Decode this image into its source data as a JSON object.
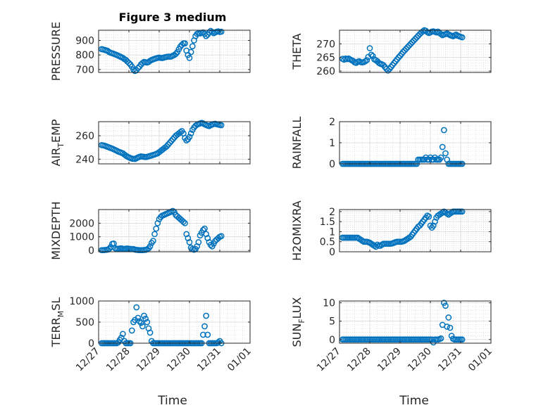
{
  "figure": {
    "title": "Figure 3 medium",
    "xlabel": "Time",
    "marker_color": "#0072BD",
    "x_ticks": [
      "12/27",
      "12/28",
      "12/29",
      "12/30",
      "12/31",
      "01/01"
    ]
  },
  "chart_data": [
    {
      "type": "scatter",
      "id": "pressure",
      "title": "Figure 3 medium",
      "ylabel": "PRESSURE",
      "ylim": [
        680,
        970
      ],
      "yticks": [
        700,
        800,
        900
      ],
      "xlabel": "",
      "x": [
        0.1,
        0.15,
        0.2,
        0.25,
        0.3,
        0.35,
        0.4,
        0.45,
        0.5,
        0.55,
        0.6,
        0.65,
        0.7,
        0.75,
        0.8,
        0.85,
        0.9,
        0.95,
        1.0,
        1.05,
        1.1,
        1.15,
        1.2,
        1.25,
        1.3,
        1.35,
        1.4,
        1.45,
        1.5,
        1.55,
        1.6,
        1.65,
        1.7,
        1.75,
        1.8,
        1.85,
        1.9,
        1.95,
        2.0,
        2.05,
        2.1,
        2.15,
        2.2,
        2.25,
        2.3,
        2.35,
        2.4,
        2.45,
        2.5,
        2.55,
        2.6,
        2.65,
        2.7,
        2.75,
        2.8,
        2.85,
        2.9,
        2.95,
        3.0,
        3.05,
        3.1,
        3.15,
        3.2,
        3.25,
        3.3,
        3.35,
        3.4,
        3.45,
        3.5,
        3.55,
        3.6,
        3.65,
        3.7,
        3.75,
        3.8,
        3.85,
        3.9,
        3.95,
        4.0,
        4.05
      ],
      "values": [
        840,
        838,
        835,
        832,
        828,
        820,
        815,
        812,
        808,
        804,
        800,
        795,
        790,
        785,
        780,
        772,
        766,
        755,
        745,
        735,
        720,
        700,
        690,
        695,
        710,
        720,
        735,
        745,
        752,
        750,
        748,
        752,
        760,
        766,
        770,
        774,
        777,
        780,
        782,
        780,
        779,
        782,
        785,
        787,
        789,
        788,
        790,
        795,
        800,
        808,
        820,
        840,
        858,
        870,
        880,
        880,
        830,
        800,
        780,
        820,
        860,
        900,
        930,
        945,
        950,
        948,
        952,
        955,
        945,
        930,
        940,
        955,
        965,
        958,
        950,
        955,
        960,
        962,
        958,
        960
      ]
    },
    {
      "type": "scatter",
      "id": "theta",
      "ylabel": "THETA",
      "ylim": [
        259.5,
        275
      ],
      "yticks": [
        260,
        265,
        270
      ],
      "xlabel": "",
      "x": [
        0.1,
        0.15,
        0.2,
        0.25,
        0.3,
        0.35,
        0.4,
        0.45,
        0.5,
        0.55,
        0.6,
        0.65,
        0.7,
        0.75,
        0.8,
        0.85,
        0.9,
        0.95,
        1.0,
        1.05,
        1.1,
        1.15,
        1.2,
        1.25,
        1.3,
        1.35,
        1.4,
        1.45,
        1.5,
        1.55,
        1.6,
        1.65,
        1.7,
        1.75,
        1.8,
        1.85,
        1.9,
        1.95,
        2.0,
        2.05,
        2.1,
        2.15,
        2.2,
        2.25,
        2.3,
        2.35,
        2.4,
        2.45,
        2.5,
        2.55,
        2.6,
        2.65,
        2.7,
        2.75,
        2.8,
        2.85,
        2.9,
        2.95,
        3.0,
        3.05,
        3.1,
        3.15,
        3.2,
        3.25,
        3.3,
        3.35,
        3.4,
        3.45,
        3.5,
        3.55,
        3.6,
        3.65,
        3.7,
        3.75,
        3.8,
        3.85,
        3.9,
        3.95,
        4.0,
        4.05
      ],
      "values": [
        264.5,
        264.2,
        264.6,
        264.4,
        264.6,
        264.3,
        264.0,
        263.7,
        263.2,
        263.0,
        263.4,
        263.6,
        263.3,
        263.2,
        263.3,
        263.6,
        264.0,
        265.2,
        268.4,
        266.0,
        265.5,
        264.3,
        264.0,
        263.6,
        263.0,
        262.7,
        262.5,
        262.2,
        261.5,
        260.8,
        260.2,
        260.8,
        261.5,
        262.2,
        262.9,
        263.6,
        264.3,
        265.0,
        265.6,
        266.3,
        267.0,
        267.6,
        268.2,
        268.8,
        269.4,
        270.0,
        270.6,
        271.2,
        271.8,
        272.4,
        273.0,
        273.6,
        274.1,
        274.6,
        275.0,
        274.8,
        274.3,
        274.0,
        274.2,
        274.5,
        274.6,
        274.4,
        274.2,
        274.5,
        274.0,
        273.6,
        273.2,
        273.4,
        273.6,
        273.8,
        273.5,
        273.2,
        273.0,
        272.8,
        273.1,
        273.4,
        273.0,
        272.8,
        272.6,
        272.4
      ]
    },
    {
      "type": "scatter",
      "id": "air_temp",
      "ylabel": "AIR_TEMP",
      "ylim": [
        236,
        272
      ],
      "yticks": [
        240,
        260
      ],
      "xlabel": "",
      "x": [
        0.1,
        0.15,
        0.2,
        0.25,
        0.3,
        0.35,
        0.4,
        0.45,
        0.5,
        0.55,
        0.6,
        0.65,
        0.7,
        0.75,
        0.8,
        0.85,
        0.9,
        0.95,
        1.0,
        1.05,
        1.1,
        1.15,
        1.2,
        1.25,
        1.3,
        1.35,
        1.4,
        1.45,
        1.5,
        1.55,
        1.6,
        1.65,
        1.7,
        1.75,
        1.8,
        1.85,
        1.9,
        1.95,
        2.0,
        2.05,
        2.1,
        2.15,
        2.2,
        2.25,
        2.3,
        2.35,
        2.4,
        2.45,
        2.5,
        2.55,
        2.6,
        2.65,
        2.7,
        2.75,
        2.8,
        2.85,
        2.9,
        2.95,
        3.0,
        3.05,
        3.1,
        3.15,
        3.2,
        3.25,
        3.3,
        3.35,
        3.4,
        3.45,
        3.5,
        3.55,
        3.6,
        3.65,
        3.7,
        3.75,
        3.8,
        3.85,
        3.9,
        3.95,
        4.0,
        4.05
      ],
      "values": [
        252,
        251.8,
        251.5,
        251,
        250.5,
        250,
        249.5,
        249,
        248.4,
        247.8,
        247.2,
        246.5,
        246,
        245.5,
        245,
        244,
        243,
        242.2,
        241.5,
        241,
        240.5,
        240.3,
        240.2,
        240.8,
        241.5,
        242,
        242.4,
        242.2,
        242,
        241.8,
        242,
        242.4,
        242.8,
        243.2,
        243.6,
        244,
        244.5,
        245,
        246,
        247,
        248,
        249,
        250,
        251,
        252.5,
        254,
        255.5,
        257,
        258.5,
        260,
        261,
        262,
        263,
        264,
        262,
        258,
        256,
        257,
        259,
        262,
        265,
        267,
        268.5,
        269.5,
        270,
        270.5,
        271,
        270.5,
        269.8,
        269.2,
        268.6,
        268.2,
        269,
        269.6,
        270,
        270.2,
        269.8,
        269.5,
        269.2,
        269.0
      ]
    },
    {
      "type": "scatter",
      "id": "rainfall",
      "ylabel": "RAINFALL",
      "ylim": [
        0,
        2
      ],
      "yticks": [
        0,
        1,
        2
      ],
      "xlabel": "",
      "x": [
        0.1,
        0.15,
        0.2,
        0.25,
        0.3,
        0.35,
        0.4,
        0.45,
        0.5,
        0.55,
        0.6,
        0.65,
        0.7,
        0.75,
        0.8,
        0.85,
        0.9,
        0.95,
        1.0,
        1.05,
        1.1,
        1.15,
        1.2,
        1.25,
        1.3,
        1.35,
        1.4,
        1.45,
        1.5,
        1.55,
        1.6,
        1.65,
        1.7,
        1.75,
        1.8,
        1.85,
        1.9,
        1.95,
        2.0,
        2.05,
        2.1,
        2.15,
        2.2,
        2.25,
        2.3,
        2.35,
        2.4,
        2.45,
        2.5,
        2.55,
        2.6,
        2.65,
        2.7,
        2.75,
        2.8,
        2.85,
        2.9,
        2.95,
        3.0,
        3.05,
        3.1,
        3.15,
        3.2,
        3.25,
        3.3,
        3.35,
        3.4,
        3.45,
        3.5,
        3.55,
        3.6,
        3.65,
        3.7,
        3.75,
        3.8,
        3.85,
        3.9,
        3.95,
        4.0,
        4.05
      ],
      "values": [
        0,
        0,
        0,
        0,
        0,
        0,
        0,
        0,
        0,
        0,
        0,
        0,
        0,
        0,
        0,
        0,
        0,
        0,
        0,
        0,
        0,
        0,
        0,
        0,
        0,
        0,
        0,
        0,
        0,
        0,
        0,
        0,
        0,
        0,
        0,
        0,
        0,
        0,
        0,
        0,
        0,
        0,
        0,
        0,
        0,
        0,
        0,
        0,
        0,
        0,
        0.2,
        0.2,
        0.2,
        0.2,
        0.2,
        0.3,
        0.2,
        0.2,
        0.3,
        0.2,
        0.2,
        0.3,
        0.2,
        0.2,
        0.2,
        0.3,
        0.8,
        1.6,
        0.5,
        0.2,
        0,
        0,
        0,
        0,
        0,
        0,
        0,
        0,
        0,
        0
      ]
    },
    {
      "type": "scatter",
      "id": "mixdepth",
      "ylabel": "MIXDEPTH",
      "ylim": [
        -100,
        3000
      ],
      "yticks": [
        0,
        1000,
        2000
      ],
      "xlabel": "",
      "x": [
        0.1,
        0.15,
        0.2,
        0.25,
        0.3,
        0.35,
        0.4,
        0.45,
        0.5,
        0.55,
        0.6,
        0.65,
        0.7,
        0.75,
        0.8,
        0.85,
        0.9,
        0.95,
        1.0,
        1.05,
        1.1,
        1.15,
        1.2,
        1.25,
        1.3,
        1.35,
        1.4,
        1.45,
        1.5,
        1.55,
        1.6,
        1.65,
        1.7,
        1.75,
        1.8,
        1.85,
        1.9,
        1.95,
        2.0,
        2.05,
        2.1,
        2.15,
        2.2,
        2.25,
        2.3,
        2.35,
        2.4,
        2.45,
        2.5,
        2.55,
        2.6,
        2.65,
        2.7,
        2.75,
        2.8,
        2.85,
        2.9,
        2.95,
        3.0,
        3.05,
        3.1,
        3.15,
        3.2,
        3.25,
        3.3,
        3.35,
        3.4,
        3.45,
        3.5,
        3.55,
        3.6,
        3.65,
        3.7,
        3.75,
        3.8,
        3.85,
        3.9,
        3.95,
        4.0,
        4.05
      ],
      "values": [
        20,
        20,
        30,
        40,
        60,
        120,
        250,
        480,
        500,
        150,
        100,
        120,
        140,
        150,
        120,
        100,
        130,
        140,
        120,
        110,
        100,
        100,
        60,
        40,
        30,
        20,
        20,
        20,
        30,
        40,
        80,
        150,
        300,
        550,
        700,
        1200,
        1600,
        2000,
        2300,
        2450,
        2550,
        2600,
        2650,
        2700,
        2750,
        2800,
        2850,
        2900,
        2800,
        2600,
        2500,
        2400,
        2300,
        2200,
        2100,
        2000,
        1200,
        900,
        600,
        200,
        100,
        50,
        100,
        300,
        600,
        1100,
        1300,
        1500,
        1600,
        1200,
        900,
        600,
        400,
        300,
        500,
        700,
        800,
        900,
        1000,
        1050
      ]
    },
    {
      "type": "scatter",
      "id": "h2omixra",
      "ylabel": "H2OMIXRA",
      "ylim": [
        0,
        2.1
      ],
      "yticks": [
        0,
        0.5,
        1,
        1.5,
        2
      ],
      "xlabel": "",
      "x": [
        0.1,
        0.15,
        0.2,
        0.25,
        0.3,
        0.35,
        0.4,
        0.45,
        0.5,
        0.55,
        0.6,
        0.65,
        0.7,
        0.75,
        0.8,
        0.85,
        0.9,
        0.95,
        1.0,
        1.05,
        1.1,
        1.15,
        1.2,
        1.25,
        1.3,
        1.35,
        1.4,
        1.45,
        1.5,
        1.55,
        1.6,
        1.65,
        1.7,
        1.75,
        1.8,
        1.85,
        1.9,
        1.95,
        2.0,
        2.05,
        2.1,
        2.15,
        2.2,
        2.25,
        2.3,
        2.35,
        2.4,
        2.45,
        2.5,
        2.55,
        2.6,
        2.65,
        2.7,
        2.75,
        2.8,
        2.85,
        2.9,
        2.95,
        3.0,
        3.05,
        3.1,
        3.15,
        3.2,
        3.25,
        3.3,
        3.35,
        3.4,
        3.45,
        3.5,
        3.55,
        3.6,
        3.65,
        3.7,
        3.75,
        3.8,
        3.85,
        3.9,
        3.95,
        4.0,
        4.05
      ],
      "values": [
        0.7,
        0.7,
        0.7,
        0.7,
        0.7,
        0.7,
        0.7,
        0.7,
        0.7,
        0.7,
        0.7,
        0.65,
        0.6,
        0.55,
        0.5,
        0.5,
        0.5,
        0.48,
        0.45,
        0.4,
        0.35,
        0.3,
        0.25,
        0.35,
        0.3,
        0.3,
        0.35,
        0.4,
        0.4,
        0.4,
        0.4,
        0.4,
        0.4,
        0.42,
        0.45,
        0.48,
        0.5,
        0.5,
        0.5,
        0.5,
        0.52,
        0.55,
        0.6,
        0.65,
        0.7,
        0.75,
        0.85,
        0.95,
        1.05,
        1.15,
        1.25,
        1.3,
        1.4,
        1.5,
        1.6,
        1.7,
        1.8,
        1.75,
        1.3,
        1.2,
        1.3,
        1.5,
        1.7,
        1.8,
        1.85,
        1.9,
        1.95,
        2.0,
        1.95,
        1.9,
        1.85,
        1.9,
        1.95,
        2.0,
        2.0,
        2.0,
        2.0,
        2.0,
        2.0,
        2.0
      ]
    },
    {
      "type": "scatter",
      "id": "terr_msl",
      "ylabel": "TERR_MSL",
      "ylim": [
        0,
        1000
      ],
      "yticks": [
        0,
        500,
        1000
      ],
      "xlabel": "Time",
      "xticks": [
        "12/27",
        "12/28",
        "12/29",
        "12/30",
        "12/31",
        "01/01"
      ],
      "x": [
        0.1,
        0.15,
        0.2,
        0.25,
        0.3,
        0.35,
        0.4,
        0.45,
        0.5,
        0.55,
        0.6,
        0.65,
        0.7,
        0.75,
        0.8,
        0.85,
        0.9,
        0.95,
        1.0,
        1.05,
        1.1,
        1.15,
        1.2,
        1.25,
        1.3,
        1.35,
        1.4,
        1.45,
        1.5,
        1.55,
        1.6,
        1.65,
        1.7,
        1.75,
        1.8,
        1.85,
        1.9,
        1.95,
        2.0,
        2.05,
        2.1,
        2.15,
        2.2,
        2.25,
        2.3,
        2.35,
        2.4,
        2.45,
        2.5,
        2.55,
        2.6,
        2.65,
        2.7,
        2.75,
        2.8,
        2.85,
        2.9,
        2.95,
        3.0,
        3.05,
        3.1,
        3.15,
        3.2,
        3.25,
        3.3,
        3.35,
        3.4,
        3.45,
        3.5,
        3.55,
        3.6,
        3.65,
        3.7,
        3.75,
        3.8,
        3.85,
        3.9,
        3.95,
        4.0,
        4.05
      ],
      "values": [
        0,
        0,
        0,
        0,
        0,
        0,
        0,
        0,
        0,
        0,
        0,
        20,
        80,
        130,
        220,
        50,
        0,
        0,
        0,
        0,
        300,
        500,
        550,
        850,
        600,
        520,
        480,
        400,
        650,
        580,
        500,
        350,
        250,
        50,
        0,
        0,
        0,
        0,
        0,
        0,
        0,
        0,
        0,
        0,
        0,
        0,
        0,
        0,
        0,
        0,
        0,
        0,
        0,
        0,
        0,
        0,
        0,
        0,
        0,
        0,
        0,
        0,
        0,
        0,
        0,
        0,
        0,
        200,
        400,
        650,
        200,
        0,
        0,
        0,
        0,
        0,
        0,
        20,
        50,
        0
      ]
    },
    {
      "type": "scatter",
      "id": "sun_flux",
      "ylabel": "SUN_FLUX",
      "ylim": [
        -1,
        10.5
      ],
      "yticks": [
        0,
        5,
        10
      ],
      "xlabel": "Time",
      "xticks": [
        "12/27",
        "12/28",
        "12/29",
        "12/30",
        "12/31",
        "01/01"
      ],
      "x": [
        0.1,
        0.15,
        0.2,
        0.25,
        0.3,
        0.35,
        0.4,
        0.45,
        0.5,
        0.55,
        0.6,
        0.65,
        0.7,
        0.75,
        0.8,
        0.85,
        0.9,
        0.95,
        1.0,
        1.05,
        1.1,
        1.15,
        1.2,
        1.25,
        1.3,
        1.35,
        1.4,
        1.45,
        1.5,
        1.55,
        1.6,
        1.65,
        1.7,
        1.75,
        1.8,
        1.85,
        1.9,
        1.95,
        2.0,
        2.05,
        2.1,
        2.15,
        2.2,
        2.25,
        2.3,
        2.35,
        2.4,
        2.45,
        2.5,
        2.55,
        2.6,
        2.65,
        2.7,
        2.75,
        2.8,
        2.85,
        2.9,
        2.95,
        3.0,
        3.05,
        3.1,
        3.15,
        3.2,
        3.25,
        3.3,
        3.35,
        3.4,
        3.45,
        3.5,
        3.55,
        3.6,
        3.65,
        3.7,
        3.75,
        3.8,
        3.85,
        3.9,
        3.95,
        4.0,
        4.05
      ],
      "values": [
        0,
        0,
        0,
        0,
        0,
        0,
        0,
        0,
        0,
        0,
        0,
        0,
        0,
        0,
        0,
        0,
        0,
        0,
        0,
        0,
        0,
        0,
        0,
        0,
        0,
        0,
        0,
        0,
        0,
        0,
        0,
        0,
        0,
        0,
        0,
        0,
        0,
        0,
        0,
        0,
        0,
        0,
        0,
        0,
        0,
        0,
        0,
        0,
        0,
        0,
        0,
        0,
        0,
        0,
        0,
        0,
        0,
        0,
        0,
        0,
        -0.8,
        0,
        0,
        0,
        0.1,
        0.3,
        4.0,
        10.0,
        9.2,
        3.5,
        6.0,
        3.2,
        1.0,
        0.2,
        0,
        0,
        0,
        0,
        0,
        0
      ]
    }
  ]
}
